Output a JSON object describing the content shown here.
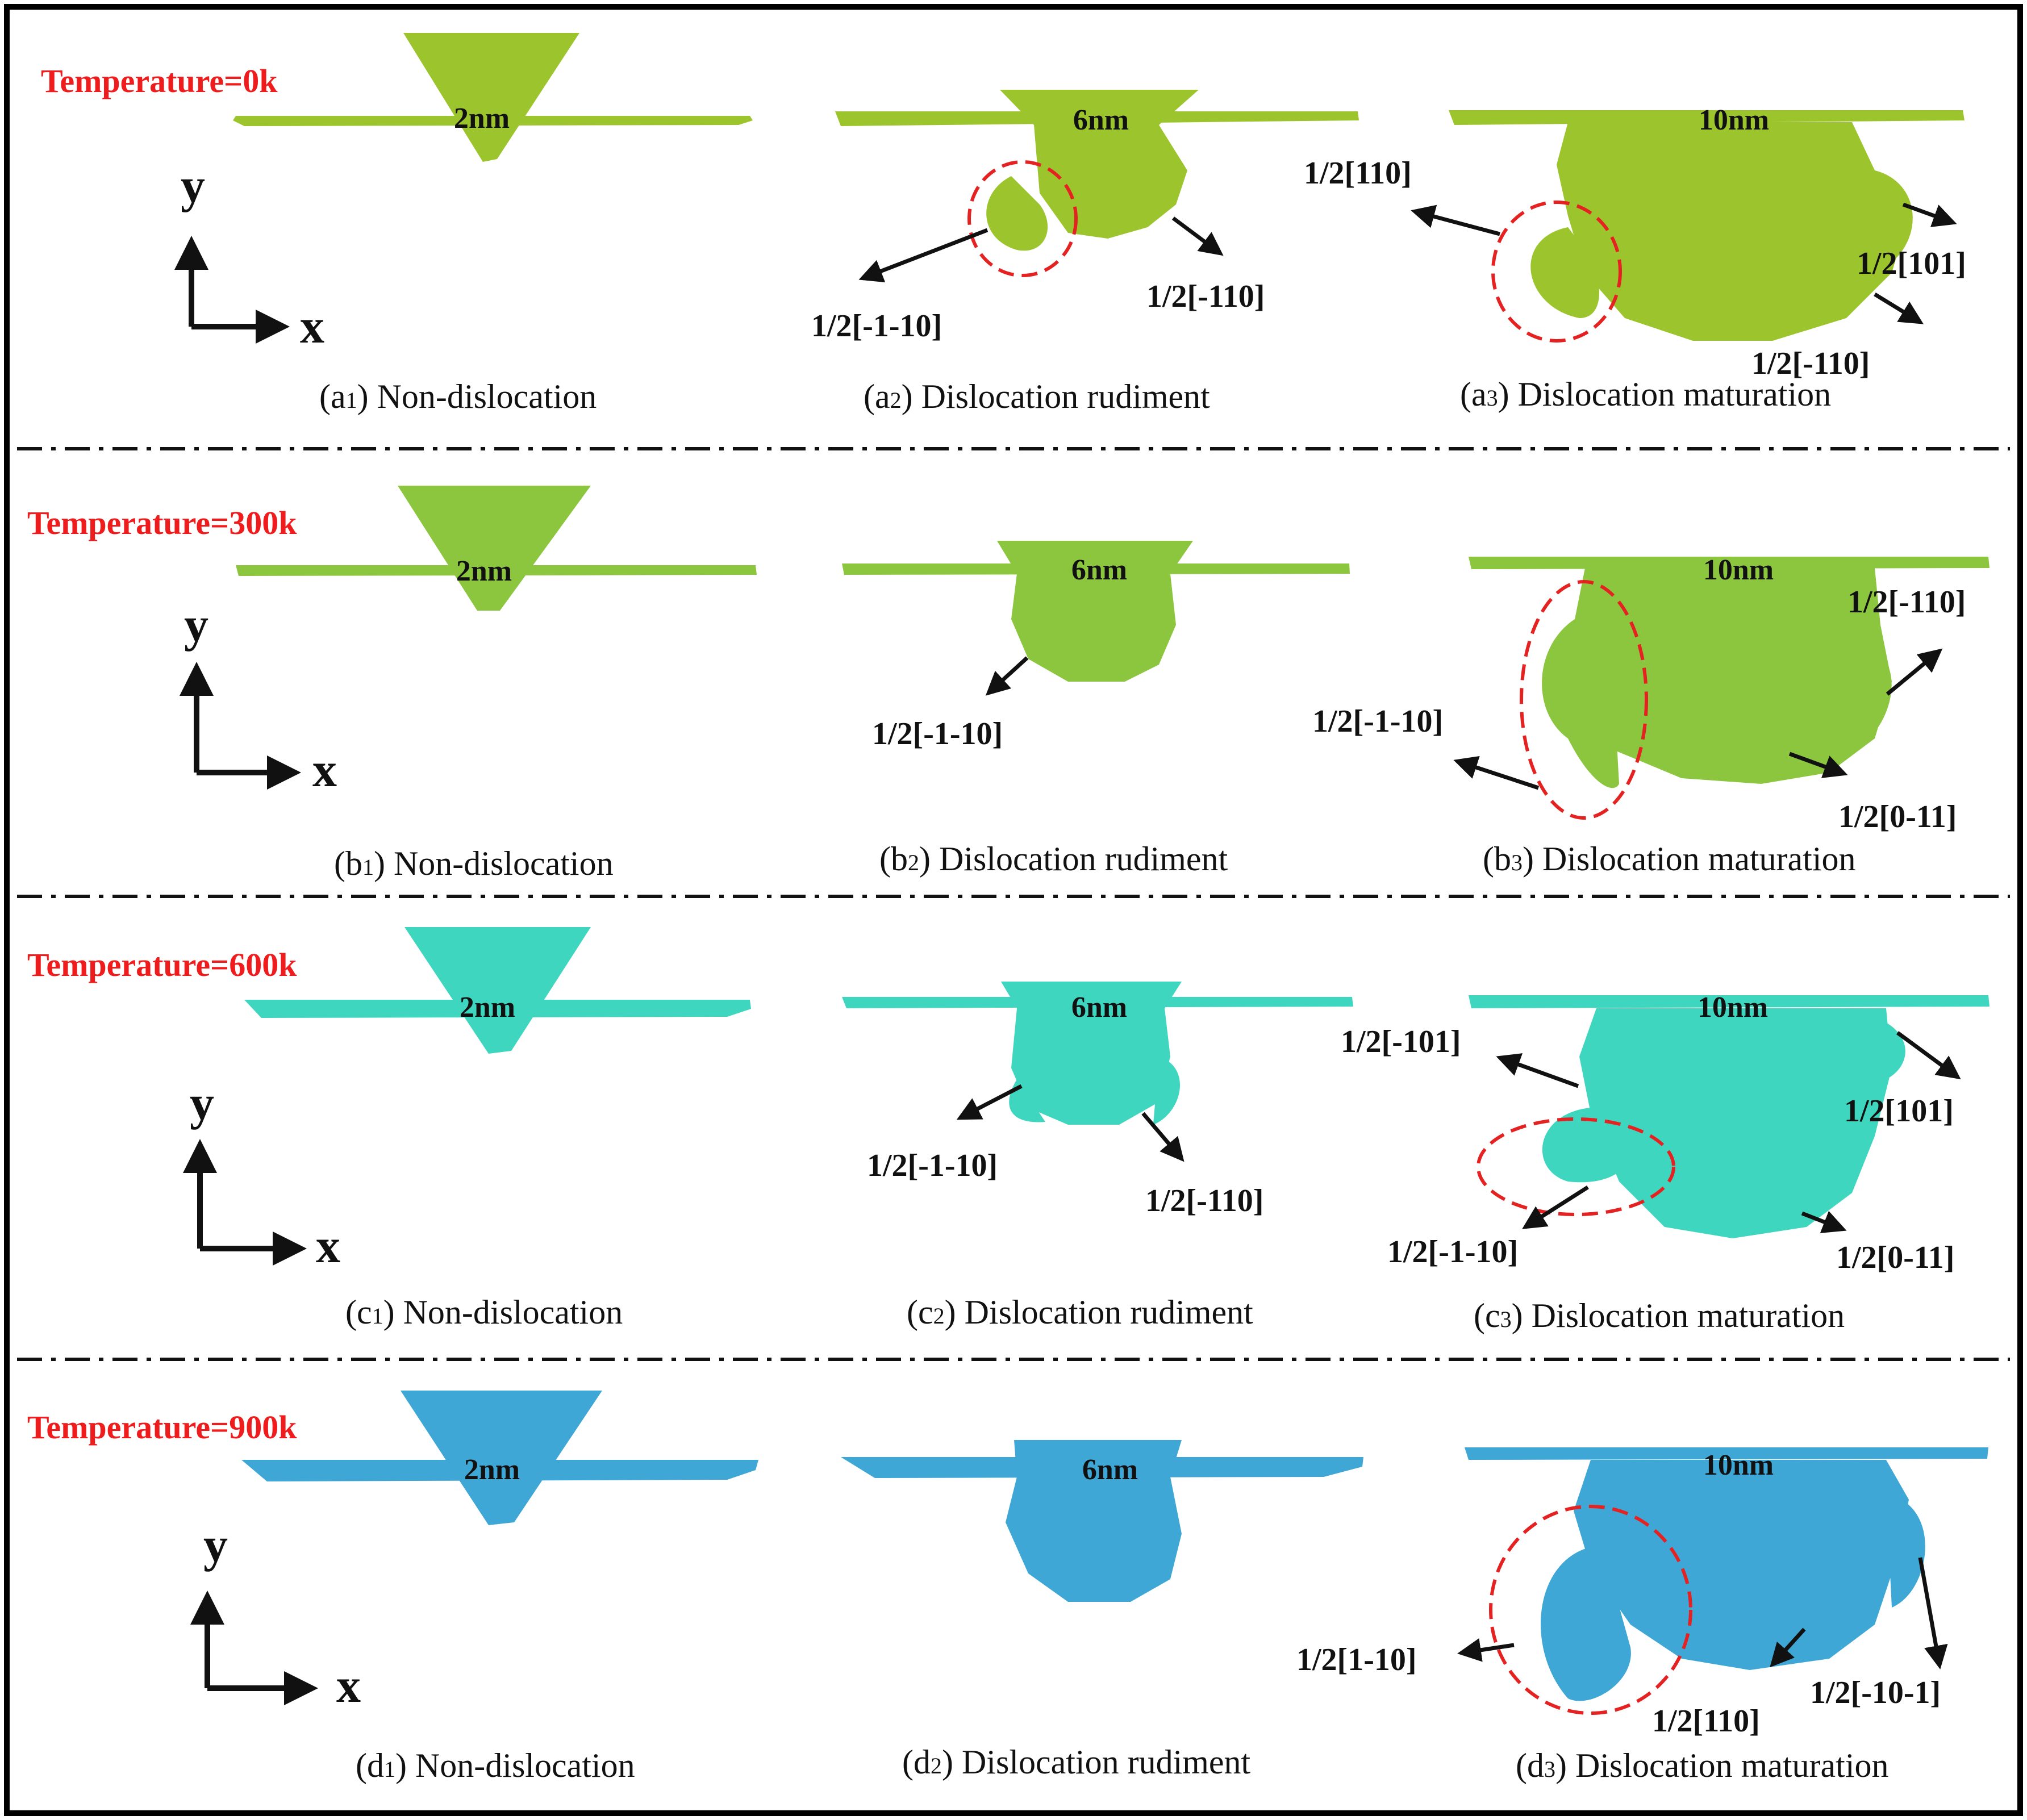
{
  "colors": {
    "row_colors": [
      "#9cc52d",
      "#8cc63f",
      "#3fd6c0",
      "#3ea7d6"
    ],
    "temperature_label": "#ee1c1c",
    "annotation_ellipse": "#e52222",
    "text": "#111111",
    "frame": "#000000"
  },
  "axes": {
    "x_label": "x",
    "y_label": "y"
  },
  "rows": [
    {
      "id": "a",
      "temperature": "Temperature=0k",
      "panels": [
        {
          "depth": "2nm",
          "caption_prefix": "(a",
          "caption_sub": "1",
          "caption_suffix": ") Non-dislocation",
          "burgers": []
        },
        {
          "depth": "6nm",
          "caption_prefix": "(a",
          "caption_sub": "2",
          "caption_suffix": ") Dislocation rudiment",
          "burgers": [
            "1/2[-1-10]",
            "1/2[-110]"
          ]
        },
        {
          "depth": "10nm",
          "caption_prefix": "(a",
          "caption_sub": "3",
          "caption_suffix": ") Dislocation maturation",
          "burgers": [
            "1/2[110]",
            "1/2[101]",
            "1/2[-110]"
          ]
        }
      ]
    },
    {
      "id": "b",
      "temperature": "Temperature=300k",
      "panels": [
        {
          "depth": "2nm",
          "caption_prefix": "(b",
          "caption_sub": "1",
          "caption_suffix": ") Non-dislocation",
          "burgers": []
        },
        {
          "depth": "6nm",
          "caption_prefix": "(b",
          "caption_sub": "2",
          "caption_suffix": ") Dislocation rudiment",
          "burgers": [
            "1/2[-1-10]"
          ]
        },
        {
          "depth": "10nm",
          "caption_prefix": "(b",
          "caption_sub": "3",
          "caption_suffix": ") Dislocation maturation",
          "burgers": [
            "1/2[-110]",
            "1/2[-1-10]",
            "1/2[0-11]"
          ]
        }
      ]
    },
    {
      "id": "c",
      "temperature": "Temperature=600k",
      "panels": [
        {
          "depth": "2nm",
          "caption_prefix": "(c",
          "caption_sub": "1",
          "caption_suffix": ") Non-dislocation",
          "burgers": []
        },
        {
          "depth": "6nm",
          "caption_prefix": "(c",
          "caption_sub": "2",
          "caption_suffix": ") Dislocation rudiment",
          "burgers": [
            "1/2[-1-10]",
            "1/2[-110]"
          ]
        },
        {
          "depth": "10nm",
          "caption_prefix": "(c",
          "caption_sub": "3",
          "caption_suffix": ") Dislocation maturation",
          "burgers": [
            "1/2[-101]",
            "1/2[101]",
            "1/2[-1-10]",
            "1/2[0-11]"
          ]
        }
      ]
    },
    {
      "id": "d",
      "temperature": "Temperature=900k",
      "panels": [
        {
          "depth": "2nm",
          "caption_prefix": "(d",
          "caption_sub": "1",
          "caption_suffix": ") Non-dislocation",
          "burgers": []
        },
        {
          "depth": "6nm",
          "caption_prefix": "(d",
          "caption_sub": "2",
          "caption_suffix": ") Dislocation rudiment",
          "burgers": []
        },
        {
          "depth": "10nm",
          "caption_prefix": "(d",
          "caption_sub": "3",
          "caption_suffix": ") Dislocation maturation",
          "burgers": [
            "1/2[1-10]",
            "1/2[110]",
            "1/2[-10-1]"
          ]
        }
      ]
    }
  ]
}
